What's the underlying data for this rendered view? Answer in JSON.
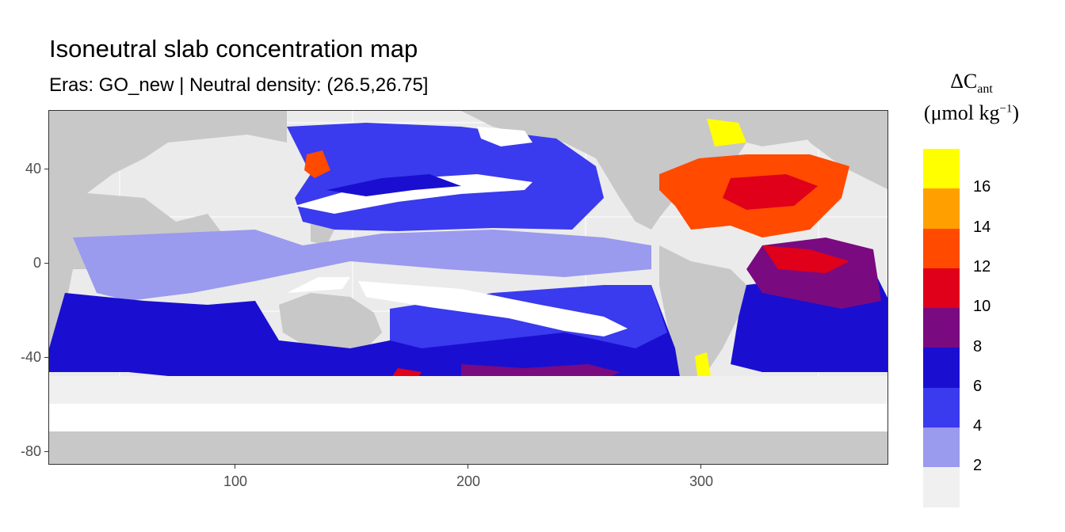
{
  "title": "Isoneutral slab concentration map",
  "subtitle": "Eras: GO_new | Neutral density: (26.5,26.75]",
  "legend": {
    "symbol": "ΔC",
    "symbol_sub": "ant",
    "unit_open": "(μmol kg",
    "unit_sup": "−1",
    "unit_close": ")",
    "labels": [
      "2",
      "4",
      "6",
      "8",
      "10",
      "12",
      "14",
      "16"
    ],
    "colors": [
      "#f0f0f0",
      "#9a9aee",
      "#3a3aee",
      "#1a0fd0",
      "#7a0a80",
      "#e0001a",
      "#ff4a00",
      "#ffa000",
      "#ffff00"
    ]
  },
  "axes": {
    "x_ticks": [
      "100",
      "200",
      "300"
    ],
    "y_ticks": [
      "40",
      "0",
      "-40",
      "-80"
    ]
  },
  "colors": {
    "land": "#c8c8c8",
    "panel_background": "#ebebeb",
    "no_data": "#ffffff"
  }
}
